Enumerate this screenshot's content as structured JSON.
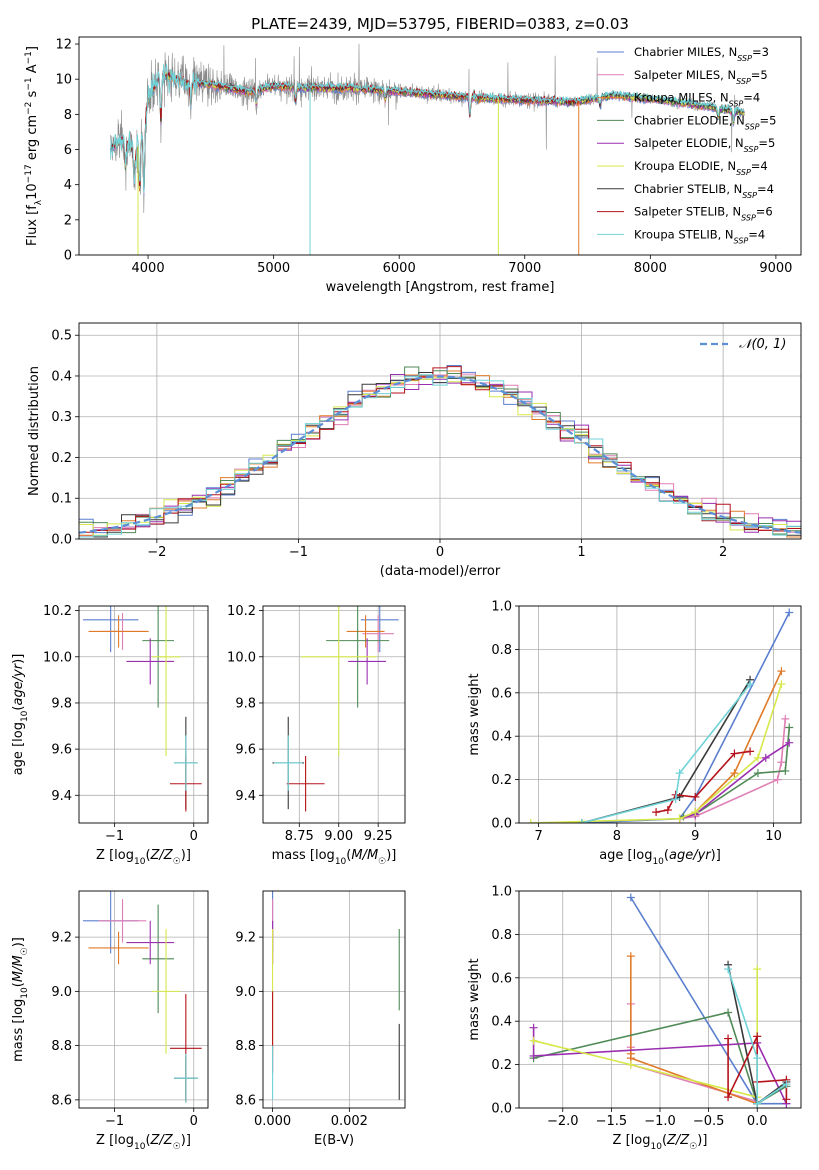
{
  "figure_title": "PLATE=2439, MJD=53795, FIBERID=0383, z=0.03",
  "colors": {
    "Chabrier MILES": "#5b7fcf",
    "Salpeter MILES": "#e07fb5",
    "Kroupa MILES": "#e07b2a",
    "Chabrier ELODIE": "#4f8a57",
    "Salpeter ELODIE": "#9a2fb0",
    "Kroupa ELODIE": "#d6e84a",
    "Chabrier STELIB": "#3a3a3a",
    "Salpeter STELIB": "#b5121b",
    "Kroupa STELIB": "#6fd3d8",
    "data": "#8a8a8a",
    "normal": "#5b8fd6"
  },
  "chart_data": [
    {
      "id": "spectrum",
      "type": "line",
      "title": "PLATE=2439, MJD=53795, FIBERID=0383, z=0.03",
      "xlabel": "wavelength [Angstrom, rest frame]",
      "ylabel": "Flux [f_λ 10^-17 erg cm^-2 s^-1 A^-1]",
      "xlim": [
        3450,
        9200
      ],
      "ylim": [
        0,
        12.4
      ],
      "xticks": [
        4000,
        5000,
        6000,
        7000,
        8000,
        9000
      ],
      "yticks": [
        0,
        2,
        4,
        6,
        8,
        10,
        12
      ],
      "grid": false,
      "legend_position": "top-right",
      "legend": [
        {
          "main": "Chabrier MILES, N",
          "sub": "SSP",
          "tail": "=3"
        },
        {
          "main": "Salpeter MILES, N",
          "sub": "SSP",
          "tail": "=5"
        },
        {
          "main": "Kroupa MILES, N",
          "sub": "SSP",
          "tail": "=4"
        },
        {
          "main": "Chabrier ELODIE, N",
          "sub": "SSP",
          "tail": "=5"
        },
        {
          "main": "Salpeter ELODIE, N",
          "sub": "SSP",
          "tail": "=5"
        },
        {
          "main": "Kroupa ELODIE, N",
          "sub": "SSP",
          "tail": "=4"
        },
        {
          "main": "Chabrier STELIB, N",
          "sub": "SSP",
          "tail": "=4"
        },
        {
          "main": "Salpeter STELIB, N",
          "sub": "SSP",
          "tail": "=6"
        },
        {
          "main": "Kroupa STELIB, N",
          "sub": "SSP",
          "tail": "=4"
        }
      ],
      "continuum": [
        [
          3700,
          6.0
        ],
        [
          3800,
          6.6
        ],
        [
          3900,
          5.8
        ],
        [
          3950,
          6.8
        ],
        [
          4000,
          8.8
        ],
        [
          4100,
          10.3
        ],
        [
          4300,
          9.8
        ],
        [
          4500,
          9.7
        ],
        [
          4800,
          9.3
        ],
        [
          5000,
          9.6
        ],
        [
          5300,
          9.5
        ],
        [
          5600,
          9.5
        ],
        [
          6000,
          9.3
        ],
        [
          6500,
          9.0
        ],
        [
          7000,
          8.8
        ],
        [
          7400,
          8.7
        ],
        [
          7700,
          9.1
        ],
        [
          8000,
          8.9
        ],
        [
          8300,
          8.6
        ],
        [
          8500,
          8.4
        ],
        [
          8750,
          8.1
        ]
      ],
      "dips": [
        [
          3820,
          4.8
        ],
        [
          3890,
          4.0
        ],
        [
          3934,
          3.5
        ],
        [
          3968,
          3.2
        ],
        [
          4102,
          7.2
        ],
        [
          4340,
          8.3
        ],
        [
          4861,
          8.5
        ],
        [
          5175,
          8.7
        ],
        [
          5890,
          8.8
        ],
        [
          6563,
          7.8
        ],
        [
          7600,
          8.4
        ],
        [
          8542,
          7.8
        ],
        [
          8662,
          7.5
        ]
      ]
    },
    {
      "id": "residuals",
      "type": "histogram",
      "xlabel": "(data-model)/error",
      "ylabel": "Normed distribution",
      "xlim": [
        -2.55,
        2.55
      ],
      "ylim": [
        0,
        0.53
      ],
      "xticks": [
        -2,
        -1,
        0,
        1,
        2
      ],
      "yticks": [
        0.0,
        0.1,
        0.2,
        0.3,
        0.4,
        0.5
      ],
      "grid": true,
      "legend_position": "top-right",
      "legend": "N(0,1)",
      "bin_width": 0.1,
      "bin_start": -2.55
    },
    {
      "id": "age_vs_Z",
      "type": "scatter",
      "xlabel": "Z [log10(Z/Z☉)]",
      "ylabel": "age  [log10(age/yr)]",
      "xlim": [
        -1.45,
        0.18
      ],
      "ylim": [
        9.28,
        10.22
      ],
      "xticks": [
        -1,
        0
      ],
      "yticks": [
        9.4,
        9.6,
        9.8,
        10.0,
        10.2
      ],
      "grid": true,
      "points": [
        {
          "m": "Chabrier MILES",
          "x": -1.05,
          "y": 10.16,
          "ex": 0.35,
          "ey": 0.14
        },
        {
          "m": "Salpeter MILES",
          "x": -0.9,
          "y": 10.11,
          "ex": 0.3,
          "ey": 0.08
        },
        {
          "m": "Kroupa MILES",
          "x": -0.95,
          "y": 10.11,
          "ex": 0.38,
          "ey": 0.07
        },
        {
          "m": "Chabrier ELODIE",
          "x": -0.45,
          "y": 10.07,
          "ex": 0.2,
          "ey": 0.29
        },
        {
          "m": "Salpeter ELODIE",
          "x": -0.55,
          "y": 9.98,
          "ex": 0.3,
          "ey": 0.1
        },
        {
          "m": "Kroupa ELODIE",
          "x": -0.35,
          "y": 10.0,
          "ex": 0.18,
          "ey": 0.43
        },
        {
          "m": "Chabrier STELIB",
          "x": -0.1,
          "y": 9.54,
          "ex": 0.15,
          "ey": 0.2
        },
        {
          "m": "Salpeter STELIB",
          "x": -0.1,
          "y": 9.45,
          "ex": 0.2,
          "ey": 0.12
        },
        {
          "m": "Kroupa STELIB",
          "x": -0.1,
          "y": 9.54,
          "ex": 0.15,
          "ey": 0.12
        }
      ]
    },
    {
      "id": "age_vs_mass",
      "type": "scatter",
      "xlabel": "mass [log10(M/M☉)]",
      "ylabel": "",
      "xlim": [
        8.52,
        9.42
      ],
      "ylim": [
        9.28,
        10.22
      ],
      "xticks": [
        8.75,
        9.0,
        9.25
      ],
      "yticks": [
        9.4,
        9.6,
        9.8,
        10.0,
        10.2
      ],
      "grid": true,
      "points": [
        {
          "m": "Chabrier MILES",
          "x": 9.26,
          "y": 10.16,
          "ex": 0.12,
          "ey": 0.14
        },
        {
          "m": "Salpeter MILES",
          "x": 9.25,
          "y": 10.1,
          "ex": 0.1,
          "ey": 0.08
        },
        {
          "m": "Kroupa MILES",
          "x": 9.17,
          "y": 10.11,
          "ex": 0.12,
          "ey": 0.07
        },
        {
          "m": "Chabrier ELODIE",
          "x": 9.12,
          "y": 10.07,
          "ex": 0.2,
          "ey": 0.29
        },
        {
          "m": "Salpeter ELODIE",
          "x": 9.18,
          "y": 9.98,
          "ex": 0.12,
          "ey": 0.1
        },
        {
          "m": "Kroupa ELODIE",
          "x": 9.0,
          "y": 10.0,
          "ex": 0.24,
          "ey": 0.43
        },
        {
          "m": "Chabrier STELIB",
          "x": 8.68,
          "y": 9.54,
          "ex": 0.1,
          "ey": 0.2
        },
        {
          "m": "Salpeter STELIB",
          "x": 8.79,
          "y": 9.45,
          "ex": 0.12,
          "ey": 0.12
        },
        {
          "m": "Kroupa STELIB",
          "x": 8.68,
          "y": 9.54,
          "ex": 0.09,
          "ey": 0.12
        }
      ]
    },
    {
      "id": "mw_vs_age",
      "type": "line",
      "xlabel": "age  [log10(age/yr)]",
      "ylabel": "mass weight",
      "xlim": [
        6.75,
        10.35
      ],
      "ylim": [
        0,
        1.0
      ],
      "xticks": [
        7,
        8,
        9,
        10
      ],
      "yticks": [
        0.0,
        0.2,
        0.4,
        0.6,
        0.8,
        1.0
      ],
      "grid": true,
      "series": [
        {
          "m": "Chabrier MILES",
          "x": [
            7.55,
            8.8,
            9.0,
            10.2
          ],
          "y": [
            0.0,
            0.02,
            0.12,
            0.97
          ]
        },
        {
          "m": "Salpeter MILES",
          "x": [
            8.8,
            9.0,
            10.05,
            10.1,
            10.15
          ],
          "y": [
            0.02,
            0.03,
            0.2,
            0.28,
            0.48
          ]
        },
        {
          "m": "Kroupa MILES",
          "x": [
            8.8,
            9.0,
            9.5,
            10.1
          ],
          "y": [
            0.02,
            0.05,
            0.23,
            0.7
          ]
        },
        {
          "m": "Chabrier ELODIE",
          "x": [
            8.85,
            9.0,
            9.8,
            10.15,
            10.2
          ],
          "y": [
            0.03,
            0.04,
            0.23,
            0.24,
            0.44
          ]
        },
        {
          "m": "Salpeter ELODIE",
          "x": [
            8.8,
            9.0,
            9.9,
            10.2
          ],
          "y": [
            0.02,
            0.04,
            0.3,
            0.37
          ]
        },
        {
          "m": "Kroupa ELODIE",
          "x": [
            6.9,
            8.8,
            9.0,
            9.8,
            10.1
          ],
          "y": [
            0.0,
            0.02,
            0.05,
            0.3,
            0.64
          ]
        },
        {
          "m": "Chabrier STELIB",
          "x": [
            7.55,
            8.8,
            9.7
          ],
          "y": [
            0.0,
            0.12,
            0.66
          ]
        },
        {
          "m": "Salpeter STELIB",
          "x": [
            8.5,
            8.65,
            8.75,
            9.0,
            9.5,
            9.7
          ],
          "y": [
            0.05,
            0.06,
            0.13,
            0.12,
            0.32,
            0.33
          ]
        },
        {
          "m": "Kroupa STELIB",
          "x": [
            7.55,
            8.75,
            8.8,
            9.7
          ],
          "y": [
            0.0,
            0.11,
            0.23,
            0.64
          ]
        }
      ]
    },
    {
      "id": "mass_vs_Z",
      "type": "scatter",
      "xlabel": "Z [log10(Z/Z☉)]",
      "ylabel": "mass [log10(M/M☉)]",
      "xlim": [
        -1.45,
        0.18
      ],
      "ylim": [
        8.57,
        9.37
      ],
      "xticks": [
        -1,
        0
      ],
      "yticks": [
        8.6,
        8.8,
        9.0,
        9.2
      ],
      "grid": true,
      "points": [
        {
          "m": "Chabrier MILES",
          "x": -1.05,
          "y": 9.26,
          "ex": 0.35,
          "ey": 0.12
        },
        {
          "m": "Salpeter MILES",
          "x": -0.9,
          "y": 9.26,
          "ex": 0.3,
          "ey": 0.08
        },
        {
          "m": "Kroupa MILES",
          "x": -0.95,
          "y": 9.16,
          "ex": 0.38,
          "ey": 0.06
        },
        {
          "m": "Chabrier ELODIE",
          "x": -0.45,
          "y": 9.12,
          "ex": 0.2,
          "ey": 0.2
        },
        {
          "m": "Salpeter ELODIE",
          "x": -0.55,
          "y": 9.18,
          "ex": 0.3,
          "ey": 0.08
        },
        {
          "m": "Kroupa ELODIE",
          "x": -0.35,
          "y": 9.0,
          "ex": 0.18,
          "ey": 0.23
        },
        {
          "m": "Chabrier STELIB",
          "x": -0.1,
          "y": 8.68,
          "ex": 0.15,
          "ey": 0.08
        },
        {
          "m": "Salpeter STELIB",
          "x": -0.1,
          "y": 8.79,
          "ex": 0.2,
          "ey": 0.2
        },
        {
          "m": "Kroupa STELIB",
          "x": -0.1,
          "y": 8.68,
          "ex": 0.15,
          "ey": 0.09
        }
      ]
    },
    {
      "id": "mass_vs_ebv",
      "type": "scatter",
      "xlabel": "E(B-V)",
      "ylabel": "",
      "xlim": [
        -0.00025,
        0.00345
      ],
      "ylim": [
        8.57,
        9.37
      ],
      "xticks": [
        0.0,
        0.002
      ],
      "yticks": [
        8.6,
        8.8,
        9.0,
        9.2
      ],
      "grid": true,
      "points": [
        {
          "m": "Chabrier MILES",
          "x": 0.0,
          "y": 9.26,
          "ex": 0,
          "ey": 0.12
        },
        {
          "m": "Salpeter MILES",
          "x": 0.0,
          "y": 9.26,
          "ex": 0,
          "ey": 0.08
        },
        {
          "m": "Kroupa MILES",
          "x": 0.0,
          "y": 9.16,
          "ex": 0,
          "ey": 0.06
        },
        {
          "m": "Chabrier ELODIE",
          "x": 0.0033,
          "y": 9.08,
          "ex": 0,
          "ey": 0.15
        },
        {
          "m": "Salpeter ELODIE",
          "x": 0.0,
          "y": 9.18,
          "ex": 0,
          "ey": 0.08
        },
        {
          "m": "Kroupa ELODIE",
          "x": 0.0,
          "y": 9.0,
          "ex": 0,
          "ey": 0.23
        },
        {
          "m": "Chabrier STELIB",
          "x": 0.0033,
          "y": 8.74,
          "ex": 0,
          "ey": 0.14
        },
        {
          "m": "Salpeter STELIB",
          "x": 0.0,
          "y": 8.85,
          "ex": 0,
          "ey": 0.15
        },
        {
          "m": "Kroupa STELIB",
          "x": 0.0,
          "y": 8.7,
          "ex": 0,
          "ey": 0.1
        }
      ]
    },
    {
      "id": "mw_vs_Z",
      "type": "line",
      "xlabel": "Z [log10(Z/Z☉)]",
      "ylabel": "mass weight",
      "xlim": [
        -2.45,
        0.45
      ],
      "ylim": [
        0,
        1.0
      ],
      "xticks": [
        -2.0,
        -1.5,
        -1.0,
        -0.5,
        0.0
      ],
      "yticks": [
        0.0,
        0.2,
        0.4,
        0.6,
        0.8,
        1.0
      ],
      "grid": true,
      "series": [
        {
          "m": "Chabrier MILES",
          "x": [
            -1.3,
            0.0,
            0.3
          ],
          "y": [
            0.97,
            0.02,
            0.02
          ]
        },
        {
          "m": "Salpeter MILES",
          "x": [
            -1.3,
            -1.3,
            -1.3,
            0.0
          ],
          "y": [
            0.48,
            0.28,
            0.2,
            0.03
          ]
        },
        {
          "m": "Kroupa MILES",
          "x": [
            -1.3,
            -1.3,
            -1.3,
            0.0
          ],
          "y": [
            0.7,
            0.25,
            0.23,
            0.02
          ]
        },
        {
          "m": "Chabrier ELODIE",
          "x": [
            -2.3,
            -0.3,
            0.0,
            0.3
          ],
          "y": [
            0.23,
            0.44,
            0.02,
            0.1
          ]
        },
        {
          "m": "Salpeter ELODIE",
          "x": [
            -2.3,
            -2.3,
            0.0,
            0.3
          ],
          "y": [
            0.37,
            0.24,
            0.3,
            0.02
          ]
        },
        {
          "m": "Kroupa ELODIE",
          "x": [
            -2.3,
            -1.3,
            0.0,
            0.0
          ],
          "y": [
            0.31,
            0.2,
            0.05,
            0.64
          ]
        },
        {
          "m": "Chabrier STELIB",
          "x": [
            -0.3,
            0.0,
            0.3
          ],
          "y": [
            0.66,
            0.02,
            0.12
          ]
        },
        {
          "m": "Salpeter STELIB",
          "x": [
            -0.3,
            -0.3,
            0.0,
            0.0,
            0.3,
            0.3
          ],
          "y": [
            0.32,
            0.05,
            0.33,
            0.12,
            0.13,
            0.04
          ]
        },
        {
          "m": "Kroupa STELIB",
          "x": [
            -0.3,
            0.0,
            0.0,
            0.3
          ],
          "y": [
            0.64,
            0.23,
            0.02,
            0.11
          ]
        }
      ]
    }
  ]
}
